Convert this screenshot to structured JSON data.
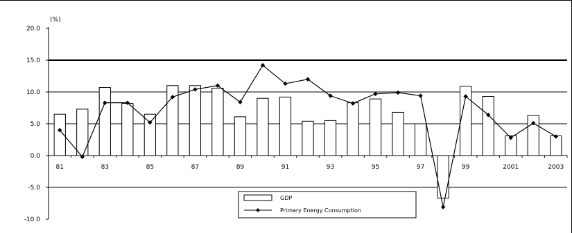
{
  "chart_data": {
    "type": "bar",
    "title": "",
    "xlabel": "",
    "ylabel": "(%)",
    "ylim": [
      -10.0,
      20.0
    ],
    "yticks": [
      "20.0",
      "15.0",
      "10.0",
      "5.0",
      "0.0",
      "-5.0",
      "-10.0"
    ],
    "xtick_labels": [
      "81",
      "83",
      "85",
      "87",
      "89",
      "91",
      "93",
      "95",
      "97",
      "99",
      "2001",
      "2003"
    ],
    "categories": [
      "1981",
      "1982",
      "1983",
      "1984",
      "1985",
      "1986",
      "1987",
      "1988",
      "1989",
      "1990",
      "1991",
      "1992",
      "1993",
      "1994",
      "1995",
      "1996",
      "1997",
      "1998",
      "1999",
      "2000",
      "2001",
      "2002",
      "2003"
    ],
    "series": [
      {
        "name": "GDP",
        "type": "bar",
        "color": "#ffffff",
        "values": [
          6.5,
          7.3,
          10.7,
          8.2,
          6.5,
          11.0,
          11.0,
          10.6,
          6.1,
          9.0,
          9.2,
          5.4,
          5.5,
          8.3,
          8.9,
          6.8,
          5.0,
          -6.7,
          10.9,
          9.3,
          3.1,
          6.3,
          3.1
        ]
      },
      {
        "name": "Primary Energy Consumption",
        "type": "line",
        "color": "#000000",
        "values": [
          4.0,
          -0.2,
          8.3,
          8.3,
          5.2,
          9.2,
          10.4,
          11.0,
          8.4,
          14.2,
          11.3,
          12.0,
          9.4,
          8.2,
          9.7,
          9.9,
          9.4,
          -8.1,
          9.3,
          6.4,
          2.8,
          5.1,
          3.0
        ]
      }
    ],
    "reference_lines": [
      15.0,
      10.0,
      5.0,
      -5.0
    ],
    "legend_placement": "bottom-center",
    "grid": false
  }
}
